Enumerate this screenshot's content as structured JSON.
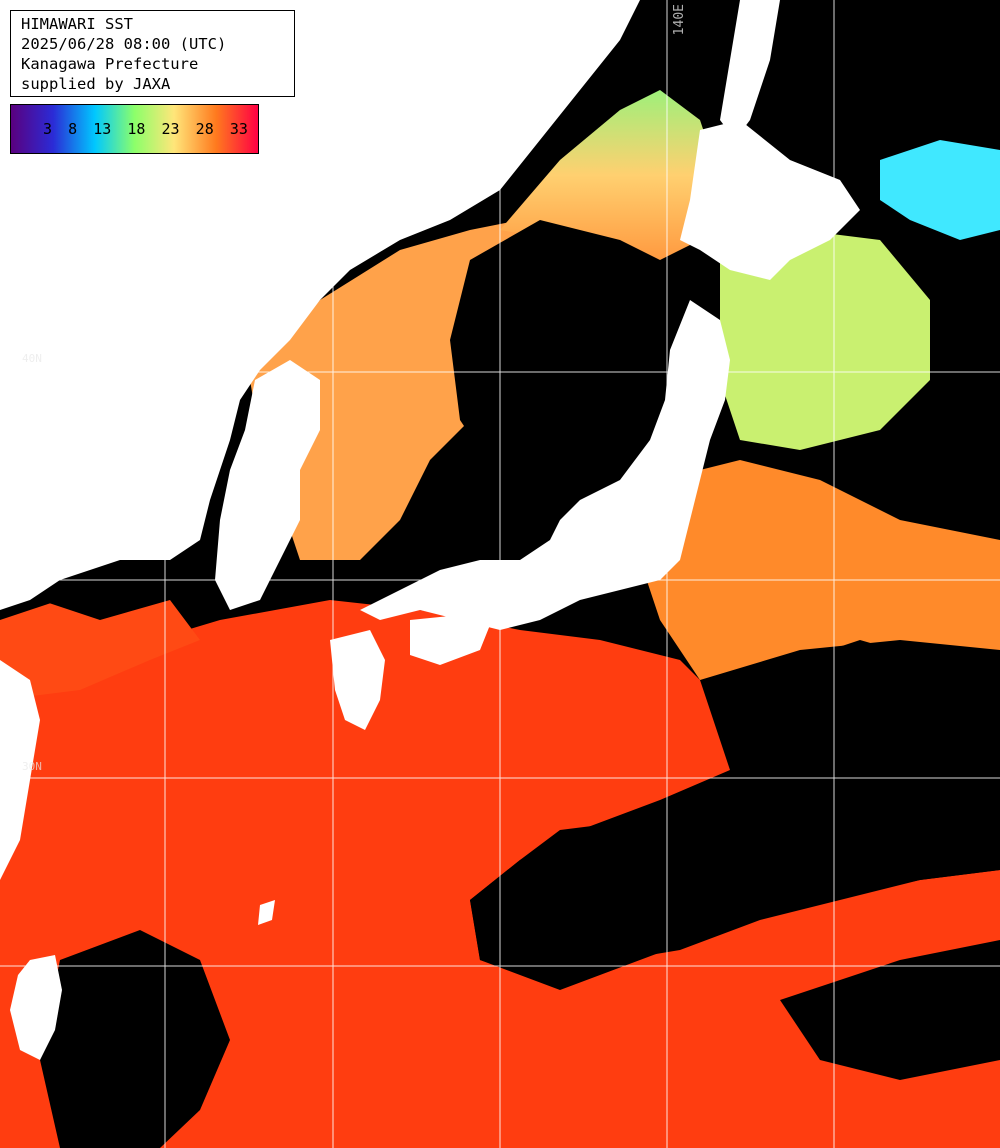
{
  "header": {
    "title": "HIMAWARI SST",
    "datetime": "2025/06/28 08:00 (UTC)",
    "region": "Kanagawa Prefecture",
    "credit": "supplied by JAXA"
  },
  "colorbar": {
    "ticks": [
      "3",
      "8",
      "13",
      "18",
      "23",
      "28",
      "33"
    ],
    "colors": [
      "#5a007f",
      "#2b2bd6",
      "#00c8ff",
      "#8cff6a",
      "#ffe67a",
      "#ff7a1e",
      "#ff0044"
    ]
  },
  "grid": {
    "lon_label": "140E",
    "lat_labels": [
      "40N",
      "30N"
    ]
  },
  "palette": {
    "land": "#ffffff",
    "cloud": "#000000",
    "grid": "#ffffff",
    "sst_warm": "#ff3d10",
    "sst_mid": "#ff9a40",
    "sst_cool": "#b8f580"
  }
}
